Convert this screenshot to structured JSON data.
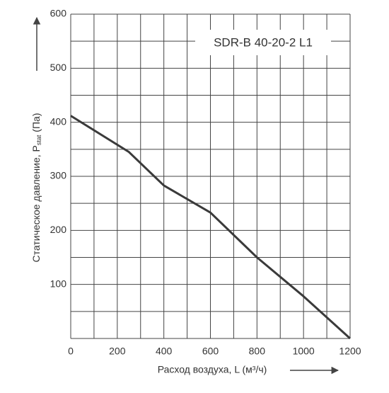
{
  "chart_data": {
    "type": "line",
    "annotation": "SDR-B 40-20-2 L1",
    "xlabel": "Расход воздуха, L (м³/ч)",
    "ylabel": "Статическое давление, P",
    "ylabel_sub": "stat",
    "ylabel_end": " (Па)",
    "x": [
      0,
      250,
      400,
      600,
      800,
      1000,
      1200
    ],
    "series": [
      {
        "color": "#3a3a3a",
        "values": [
          412,
          345,
          283,
          233,
          150,
          78,
          0
        ]
      }
    ],
    "xlim": [
      0,
      1200
    ],
    "ylim": [
      0,
      600
    ],
    "xticks": [
      0,
      200,
      400,
      600,
      800,
      1000,
      1200
    ],
    "yticks": [
      100,
      200,
      300,
      400,
      500,
      600
    ],
    "minor_xticks": [
      100,
      300,
      500,
      700,
      900,
      1100
    ],
    "minor_yticks": [
      50,
      150,
      250,
      350,
      450,
      550
    ],
    "grid": true
  }
}
